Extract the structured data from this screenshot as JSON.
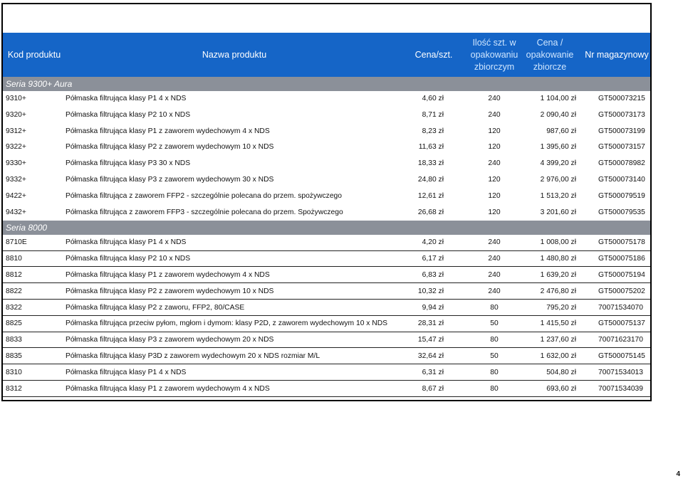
{
  "header": {
    "code": "Kod produktu",
    "name": "Nazwa produktu",
    "price": "Cena/szt.",
    "qty": "Ilość szt. w opakowaniu zbiorczym",
    "bulk_price": "Cena / opakowanie zbiorcze",
    "stock": "Nr magazynowy"
  },
  "series": [
    {
      "title": "Seria 9300+ Aura",
      "rows": [
        {
          "code": "9310+",
          "name": "Półmaska filtrująca klasy P1 4 x NDS",
          "price": "4,60 zł",
          "qty": "240",
          "bulk": "1 104,00 zł",
          "stock": "GT500073215"
        },
        {
          "code": "9320+",
          "name": "Półmaska filtrująca klasy P2 10 x NDS",
          "price": "8,71 zł",
          "qty": "240",
          "bulk": "2 090,40 zł",
          "stock": "GT500073173"
        },
        {
          "code": "9312+",
          "name": "Półmaska filtrująca klasy P1 z zaworem wydechowym 4 x NDS",
          "price": "8,23 zł",
          "qty": "120",
          "bulk": "987,60 zł",
          "stock": "GT500073199"
        },
        {
          "code": "9322+",
          "name": "Półmaska filtrująca klasy P2 z zaworem wydechowym 10 x NDS",
          "price": "11,63 zł",
          "qty": "120",
          "bulk": "1 395,60 zł",
          "stock": "GT500073157"
        },
        {
          "code": "9330+",
          "name": "Półmaska filtrująca klasy P3 30 x NDS",
          "price": "18,33 zł",
          "qty": "240",
          "bulk": "4 399,20 zł",
          "stock": "GT500078982"
        },
        {
          "code": "9332+",
          "name": "Półmaska filtrująca klasy P3 z zaworem wydechowym 30 x NDS",
          "price": "24,80 zł",
          "qty": "120",
          "bulk": "2 976,00 zł",
          "stock": "GT500073140"
        },
        {
          "code": "9422+",
          "name": "Półmaska filtrująca z zaworem FFP2 - szczególnie polecana do przem. spożywczego",
          "price": "12,61 zł",
          "qty": "120",
          "bulk": "1 513,20 zł",
          "stock": "GT500079519"
        },
        {
          "code": "9432+",
          "name": "Półmaska filtrująca z zaworem FFP3 - szczególnie polecana do przem. Spożywczego",
          "price": "26,68 zł",
          "qty": "120",
          "bulk": "3 201,60 zł",
          "stock": "GT500079535"
        }
      ]
    },
    {
      "title": "Seria 8000",
      "rows": [
        {
          "code": "8710E",
          "name": "Półmaska filtrująca klasy P1 4 x NDS",
          "price": "4,20 zł",
          "qty": "240",
          "bulk": "1 008,00 zł",
          "stock": "GT500075178"
        },
        {
          "code": "8810",
          "name": "Półmaska filtrująca klasy P2 10 x NDS",
          "price": "6,17 zł",
          "qty": "240",
          "bulk": "1 480,80 zł",
          "stock": "GT500075186"
        },
        {
          "code": "8812",
          "name": "Półmaska filtrująca klasy P1 z zaworem wydechowym 4 x NDS",
          "price": "6,83 zł",
          "qty": "240",
          "bulk": "1 639,20 zł",
          "stock": "GT500075194"
        },
        {
          "code": "8822",
          "name": "Półmaska filtrująca klasy P2 z zaworem wydechowym 10 x NDS",
          "price": "10,32 zł",
          "qty": "240",
          "bulk": "2 476,80 zł",
          "stock": "GT500075202"
        },
        {
          "code": "8322",
          "name": "Półmaska filtrująca klasy P2 z zaworu, FFP2, 80/CASE",
          "price": "9,94 zł",
          "qty": "80",
          "bulk": "795,20 zł",
          "stock": "70071534070"
        },
        {
          "code": "8825",
          "name": "Półmaska filtrująca przeciw pyłom, mgłom i dymom: klasy P2D, z zaworem wydechowym 10 x NDS",
          "price": "28,31 zł",
          "qty": "50",
          "bulk": "1 415,50 zł",
          "stock": "GT500075137"
        },
        {
          "code": "8833",
          "name": "Półmaska filtrująca klasy P3 z zaworem wydechowym 20 x NDS",
          "price": "15,47 zł",
          "qty": "80",
          "bulk": "1 237,60 zł",
          "stock": "70071623170"
        },
        {
          "code": "8835",
          "name": "Półmaska filtrująca klasy P3D z zaworem wydechowym 20 x NDS rozmiar M/L",
          "price": "32,64 zł",
          "qty": "50",
          "bulk": "1 632,00 zł",
          "stock": "GT500075145"
        },
        {
          "code": "8310",
          "name": "Półmaska filtrująca klasy P1 4 x NDS",
          "price": "6,31 zł",
          "qty": "80",
          "bulk": "504,80 zł",
          "stock": "70071534013"
        },
        {
          "code": "8312",
          "name": "Półmaska filtrująca klasy P1 z zaworem wydechowym 4 x NDS",
          "price": "8,67 zł",
          "qty": "80",
          "bulk": "693,60 zł",
          "stock": "70071534039"
        }
      ]
    }
  ],
  "page_number": "4"
}
